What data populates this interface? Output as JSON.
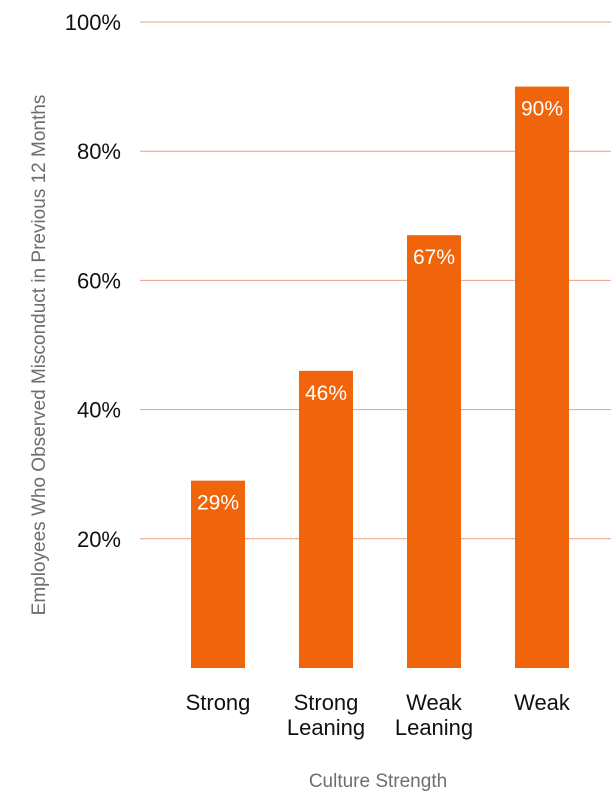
{
  "chart_data": {
    "type": "bar",
    "categories": [
      "Strong",
      "Strong Leaning",
      "Weak Leaning",
      "Weak"
    ],
    "category_lines": [
      [
        "Strong"
      ],
      [
        "Strong",
        "Leaning"
      ],
      [
        "Weak",
        "Leaning"
      ],
      [
        "Weak"
      ]
    ],
    "values": [
      29,
      46,
      67,
      90
    ],
    "data_labels": [
      "29%",
      "46%",
      "67%",
      "90%"
    ],
    "title": "",
    "xlabel": "Culture Strength",
    "ylabel": "Employees Who Observed Misconduct in Previous 12 Months",
    "ylim": [
      0,
      100
    ],
    "yticks": [
      20,
      40,
      60,
      80,
      100
    ],
    "ytick_labels": [
      "20%",
      "40%",
      "60%",
      "80%",
      "100%"
    ],
    "grid": true,
    "legend": "none",
    "colors": {
      "bar": "#f0650b",
      "grid": "#e8a17f",
      "bar_label": "#ffffff",
      "tick_text": "#111111",
      "axis_title": "#6e6e6e"
    }
  }
}
